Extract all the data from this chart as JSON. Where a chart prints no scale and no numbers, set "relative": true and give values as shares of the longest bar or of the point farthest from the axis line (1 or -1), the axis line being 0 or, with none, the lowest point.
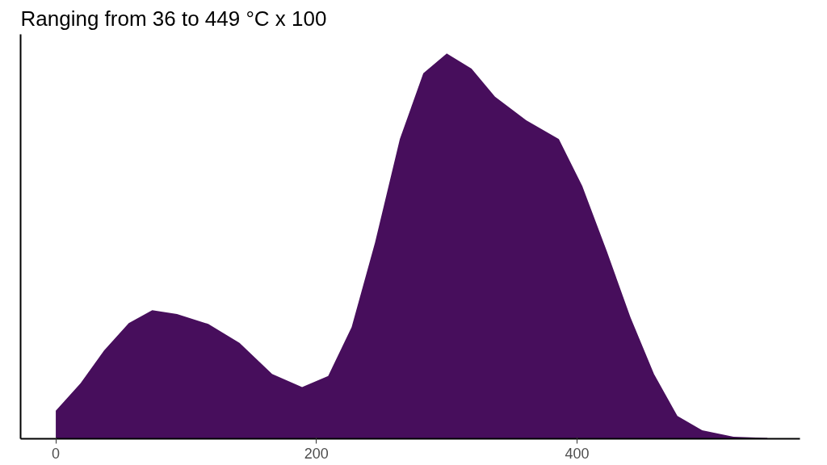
{
  "chart_data": {
    "type": "area",
    "title": "Ranging from 36 to 449 °C x 100",
    "relative": true,
    "color": "#470e5c",
    "x": [
      0,
      19,
      37,
      56,
      74,
      93,
      117,
      141,
      166,
      189,
      209,
      227,
      245,
      264,
      282,
      300,
      319,
      337,
      361,
      386,
      404,
      423,
      441,
      459,
      477,
      496,
      520,
      546
    ],
    "values": [
      0.073,
      0.144,
      0.229,
      0.3,
      0.334,
      0.324,
      0.298,
      0.249,
      0.168,
      0.134,
      0.163,
      0.29,
      0.51,
      0.778,
      0.949,
      1.0,
      0.961,
      0.888,
      0.827,
      0.778,
      0.656,
      0.485,
      0.315,
      0.168,
      0.059,
      0.022,
      0.005,
      0.002
    ],
    "xlim": [
      -27,
      571
    ],
    "xticks": [
      0,
      200,
      400
    ],
    "grid": false,
    "tick_labels": "x"
  }
}
